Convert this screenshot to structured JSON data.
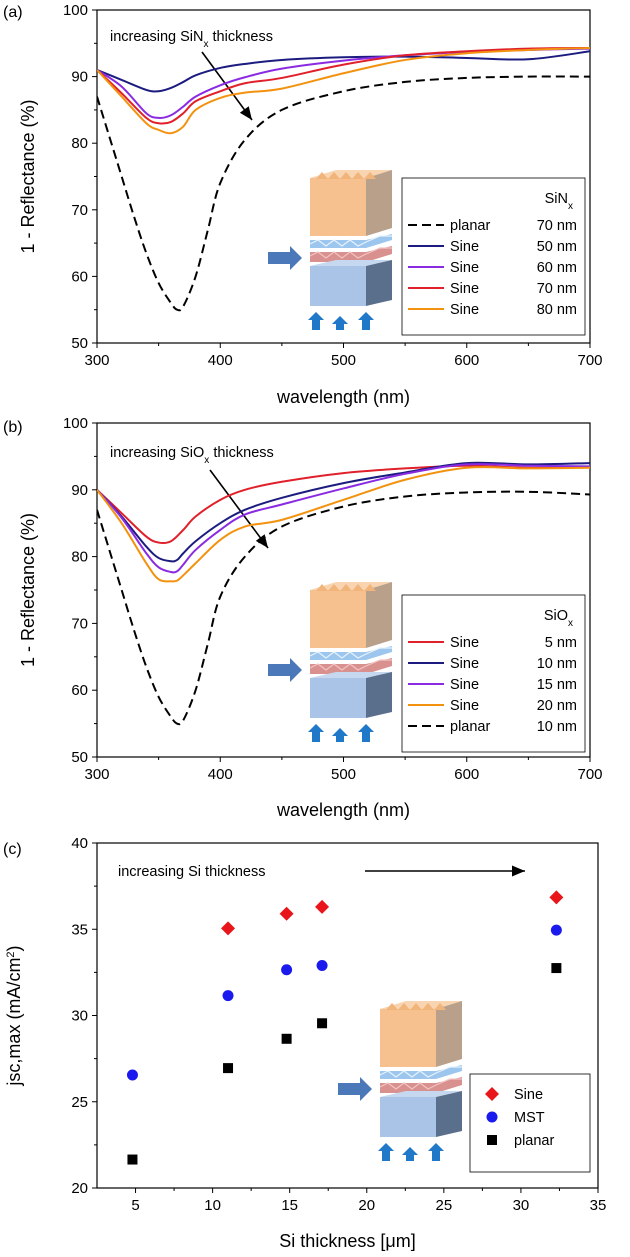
{
  "chart_data": [
    {
      "panel": "(a)",
      "type": "line",
      "xlabel": "wavelength (nm)",
      "ylabel": "1 - Reflectance (%)",
      "xlim": [
        300,
        700
      ],
      "ylim": [
        50,
        100
      ],
      "xticks": [
        300,
        400,
        500,
        600,
        700
      ],
      "yticks": [
        50,
        60,
        70,
        80,
        90,
        100
      ],
      "annotation": {
        "text_main": "increasing SiN",
        "text_sub": "x",
        "text_tail": " thickness"
      },
      "legend": {
        "title_main": "SiN",
        "title_sub": "x",
        "placement": "center-right"
      },
      "series": [
        {
          "name": "planar",
          "thickness": "70 nm",
          "color": "#000000",
          "dash": true,
          "x": [
            300,
            310,
            320,
            330,
            340,
            350,
            360,
            365,
            370,
            380,
            390,
            400,
            420,
            450,
            500,
            550,
            600,
            650,
            700
          ],
          "y": [
            87,
            81,
            75,
            69,
            63.5,
            59,
            56,
            55,
            55.5,
            60,
            67,
            74,
            80.5,
            85,
            87.8,
            89.2,
            89.8,
            90,
            90
          ]
        },
        {
          "name": "Sine",
          "thickness": "50 nm",
          "color": "#1c1c80",
          "dash": false,
          "x": [
            300,
            320,
            340,
            350,
            360,
            370,
            380,
            400,
            420,
            450,
            500,
            550,
            600,
            650,
            700
          ],
          "y": [
            91,
            89.5,
            88,
            87.8,
            88.3,
            89.2,
            90.2,
            91.3,
            91.9,
            92.5,
            92.9,
            93,
            92.8,
            92.6,
            93.8
          ]
        },
        {
          "name": "Sine",
          "thickness": "60 nm",
          "color": "#8a2be2",
          "dash": false,
          "x": [
            300,
            320,
            340,
            350,
            360,
            370,
            380,
            400,
            420,
            450,
            500,
            550,
            600,
            650,
            700
          ],
          "y": [
            91,
            88.5,
            84.5,
            83.8,
            84.2,
            85.5,
            87,
            88.7,
            89.9,
            91.2,
            92.4,
            93.2,
            93.7,
            94,
            94.2
          ]
        },
        {
          "name": "Sine",
          "thickness": "70 nm",
          "color": "#e0202a",
          "dash": false,
          "x": [
            300,
            320,
            340,
            350,
            360,
            370,
            380,
            400,
            420,
            450,
            500,
            550,
            600,
            650,
            700
          ],
          "y": [
            91,
            87.5,
            83.8,
            83,
            83.2,
            84.5,
            86.3,
            87.8,
            89,
            89.8,
            91.8,
            93.2,
            93.8,
            94.2,
            94.3
          ]
        },
        {
          "name": "Sine",
          "thickness": "80 nm",
          "color": "#f2920f",
          "dash": false,
          "x": [
            300,
            320,
            340,
            350,
            360,
            370,
            380,
            400,
            420,
            450,
            500,
            550,
            600,
            650,
            700
          ],
          "y": [
            91,
            87,
            83,
            82,
            81.5,
            82.5,
            85,
            86.8,
            87.6,
            88.2,
            90.5,
            92.5,
            93.5,
            94,
            94.3
          ]
        }
      ]
    },
    {
      "panel": "(b)",
      "type": "line",
      "xlabel": "wavelength (nm)",
      "ylabel": "1 - Reflectance (%)",
      "xlim": [
        300,
        700
      ],
      "ylim": [
        50,
        100
      ],
      "xticks": [
        300,
        400,
        500,
        600,
        700
      ],
      "yticks": [
        50,
        60,
        70,
        80,
        90,
        100
      ],
      "annotation": {
        "text_main": "increasing SiO",
        "text_sub": "x",
        "text_tail": " thickness"
      },
      "legend": {
        "title_main": "SiO",
        "title_sub": "x",
        "placement": "center-right"
      },
      "series": [
        {
          "name": "Sine",
          "thickness": "5 nm",
          "color": "#e0202a",
          "dash": false,
          "x": [
            300,
            320,
            340,
            350,
            360,
            370,
            380,
            400,
            420,
            450,
            500,
            550,
            600,
            650,
            700
          ],
          "y": [
            90,
            86.5,
            83,
            82.1,
            82.3,
            84,
            86,
            88.5,
            90,
            91.2,
            92.5,
            93.2,
            93.6,
            93.3,
            93.4
          ]
        },
        {
          "name": "Sine",
          "thickness": "10 nm",
          "color": "#1c1c80",
          "dash": false,
          "x": [
            300,
            320,
            340,
            350,
            360,
            365,
            370,
            380,
            400,
            420,
            450,
            500,
            550,
            600,
            650,
            700
          ],
          "y": [
            90,
            86,
            81.5,
            79.8,
            79.3,
            79.5,
            80.5,
            82.3,
            85,
            87,
            88.8,
            91,
            92.6,
            94,
            93.8,
            94
          ]
        },
        {
          "name": "Sine",
          "thickness": "15 nm",
          "color": "#8a2be2",
          "dash": false,
          "x": [
            300,
            320,
            340,
            350,
            360,
            365,
            370,
            380,
            400,
            420,
            450,
            500,
            550,
            600,
            650,
            700
          ],
          "y": [
            90,
            85.8,
            80.5,
            78.4,
            77.7,
            77.8,
            78.8,
            81,
            84,
            86.3,
            87.8,
            90.2,
            92.4,
            93.8,
            93.6,
            93.5
          ]
        },
        {
          "name": "Sine",
          "thickness": "20 nm",
          "color": "#f2920f",
          "dash": false,
          "x": [
            300,
            320,
            340,
            350,
            360,
            365,
            370,
            380,
            400,
            420,
            450,
            500,
            550,
            600,
            650,
            700
          ],
          "y": [
            90,
            85,
            79,
            76.6,
            76.3,
            76.4,
            77.2,
            79,
            82.5,
            84.5,
            85.5,
            88.5,
            91.5,
            93.3,
            93.2,
            93.3
          ]
        },
        {
          "name": "planar",
          "thickness": "10 nm",
          "color": "#000000",
          "dash": true,
          "x": [
            300,
            310,
            320,
            330,
            340,
            350,
            360,
            365,
            370,
            380,
            390,
            400,
            420,
            450,
            500,
            550,
            600,
            650,
            700
          ],
          "y": [
            87,
            81,
            75,
            69,
            63.5,
            59,
            56,
            55,
            55.5,
            60,
            67,
            74,
            80,
            84.5,
            87.5,
            89,
            89.6,
            89.7,
            89.3
          ]
        }
      ]
    },
    {
      "panel": "(c)",
      "type": "scatter",
      "xlabel": "Si thickness [μm]",
      "ylabel_main": "jsc,max (mA/cm",
      "ylabel_sup": "2",
      "ylabel_tail": ")",
      "xlim": [
        2.5,
        35
      ],
      "ylim": [
        20,
        40
      ],
      "xticks": [
        5,
        10,
        15,
        20,
        25,
        30,
        35
      ],
      "yticks": [
        20,
        25,
        30,
        35,
        40
      ],
      "annotation": {
        "text": "increasing Si thickness"
      },
      "legend": {
        "placement": "bottom-right"
      },
      "series": [
        {
          "name": "Sine",
          "marker": "diamond",
          "color": "#e8151b",
          "x": [
            11,
            14.8,
            17.1,
            32.3
          ],
          "y": [
            35.05,
            35.9,
            36.3,
            36.85
          ]
        },
        {
          "name": "MST",
          "marker": "circle",
          "color": "#1a1aee",
          "x": [
            4.8,
            11,
            14.8,
            17.1,
            32.3
          ],
          "y": [
            26.55,
            31.15,
            32.65,
            32.9,
            34.95
          ]
        },
        {
          "name": "planar",
          "marker": "square",
          "color": "#000000",
          "x": [
            4.8,
            11,
            14.8,
            17.1,
            32.3
          ],
          "y": [
            21.65,
            26.95,
            28.65,
            29.55,
            32.75
          ]
        }
      ]
    }
  ],
  "colors": {
    "cube_orange": "#f6c08f",
    "cube_orange_dark": "#b9a08a",
    "layer_blue": "#9cc6ee",
    "layer_pink": "#d9918f",
    "cube_blue": "#a9c4e6",
    "cube_blue_dark": "#5a6f8c",
    "arrow_blue": "#1f78c8",
    "side_arrow": "#4a78b8"
  }
}
